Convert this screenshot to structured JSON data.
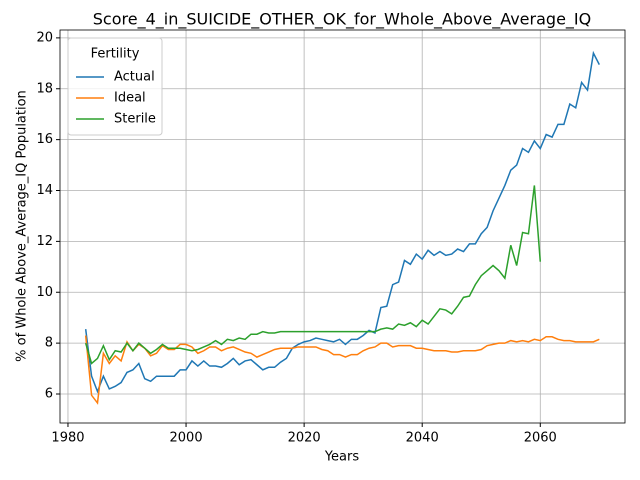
{
  "chart_data": {
    "type": "line",
    "title": "Score_4_in_SUICIDE_OTHER_OK_for_Whole_Above_Average_IQ",
    "x_label": "Years",
    "y_label": "% of Whole Above_Average_IQ Population",
    "legend_title": "Fertility",
    "legend_position": "upper left",
    "grid": true,
    "x": [
      1983,
      1984,
      1985,
      1986,
      1987,
      1988,
      1989,
      1990,
      1991,
      1992,
      1993,
      1994,
      1995,
      1996,
      1997,
      1998,
      1999,
      2000,
      2001,
      2002,
      2003,
      2004,
      2005,
      2006,
      2007,
      2008,
      2009,
      2010,
      2011,
      2012,
      2013,
      2014,
      2015,
      2016,
      2017,
      2018,
      2019,
      2020,
      2021,
      2022,
      2023,
      2024,
      2025,
      2026,
      2027,
      2028,
      2029,
      2030,
      2031,
      2032,
      2033,
      2034,
      2035,
      2036,
      2037,
      2038,
      2039,
      2040,
      2041,
      2042,
      2043,
      2044,
      2045,
      2046,
      2047,
      2048,
      2049,
      2050,
      2051,
      2052,
      2053,
      2054,
      2055,
      2056,
      2057,
      2058,
      2059,
      2060,
      2061,
      2062,
      2063,
      2064,
      2065,
      2066,
      2067,
      2068,
      2069,
      2070
    ],
    "series": [
      {
        "name": "Actual",
        "color": "#1f77b4",
        "values": [
          8.55,
          6.7,
          6.1,
          6.7,
          6.2,
          6.3,
          6.45,
          6.85,
          6.95,
          7.2,
          6.6,
          6.5,
          6.7,
          6.7,
          6.7,
          6.7,
          6.95,
          6.95,
          7.3,
          7.1,
          7.3,
          7.1,
          7.1,
          7.05,
          7.2,
          7.4,
          7.15,
          7.3,
          7.35,
          7.15,
          6.95,
          7.05,
          7.05,
          7.25,
          7.4,
          7.8,
          7.95,
          8.05,
          8.1,
          8.2,
          8.15,
          8.1,
          8.05,
          8.15,
          7.95,
          8.15,
          8.15,
          8.3,
          8.5,
          8.4,
          9.4,
          9.45,
          10.3,
          10.4,
          11.25,
          11.1,
          11.5,
          11.3,
          11.65,
          11.45,
          11.6,
          11.45,
          11.5,
          11.7,
          11.6,
          11.9,
          11.9,
          12.3,
          12.55,
          13.2,
          13.7,
          14.2,
          14.8,
          15.0,
          15.65,
          15.5,
          15.95,
          15.65,
          16.2,
          16.1,
          16.6,
          16.6,
          17.4,
          17.25,
          18.25,
          17.95,
          19.4,
          18.95
        ]
      },
      {
        "name": "Ideal",
        "color": "#ff7f0e",
        "values": [
          8.3,
          5.95,
          5.65,
          7.6,
          7.2,
          7.5,
          7.3,
          8.05,
          7.7,
          7.95,
          7.8,
          7.5,
          7.6,
          7.9,
          7.75,
          7.75,
          7.95,
          7.95,
          7.85,
          7.6,
          7.7,
          7.85,
          7.85,
          7.7,
          7.8,
          7.85,
          7.75,
          7.65,
          7.6,
          7.45,
          7.55,
          7.65,
          7.75,
          7.8,
          7.8,
          7.8,
          7.85,
          7.85,
          7.85,
          7.85,
          7.75,
          7.7,
          7.55,
          7.55,
          7.45,
          7.55,
          7.55,
          7.7,
          7.8,
          7.85,
          8.0,
          8.0,
          7.85,
          7.9,
          7.9,
          7.9,
          7.8,
          7.8,
          7.75,
          7.7,
          7.7,
          7.7,
          7.65,
          7.65,
          7.7,
          7.7,
          7.7,
          7.75,
          7.9,
          7.95,
          8.0,
          8.0,
          8.1,
          8.05,
          8.1,
          8.05,
          8.15,
          8.1,
          8.25,
          8.25,
          8.15,
          8.1,
          8.1,
          8.05,
          8.05,
          8.05,
          8.05,
          8.15
        ]
      },
      {
        "name": "Sterile",
        "color": "#2ca02c",
        "values": [
          8.0,
          7.2,
          7.4,
          7.9,
          7.35,
          7.7,
          7.65,
          8.0,
          7.7,
          8.0,
          7.8,
          7.6,
          7.75,
          7.95,
          7.8,
          7.8,
          7.8,
          7.75,
          7.7,
          7.75,
          7.85,
          7.95,
          8.1,
          7.95,
          8.15,
          8.1,
          8.2,
          8.15,
          8.35,
          8.35,
          8.45,
          8.4,
          8.4,
          8.45,
          8.45,
          8.45,
          8.45,
          8.45,
          8.45,
          8.45,
          8.45,
          8.45,
          8.45,
          8.45,
          8.45,
          8.45,
          8.45,
          8.45,
          8.45,
          8.45,
          8.55,
          8.6,
          8.55,
          8.75,
          8.7,
          8.8,
          8.65,
          8.9,
          8.75,
          9.05,
          9.35,
          9.3,
          9.15,
          9.45,
          9.8,
          9.85,
          10.3,
          10.65,
          10.85,
          11.05,
          10.85,
          10.55,
          11.85,
          11.05,
          12.35,
          12.3,
          14.2,
          11.2,
          null,
          null,
          null,
          null,
          null,
          null,
          null,
          null,
          null,
          null
        ]
      }
    ],
    "xlim": [
      1978.65,
      2074.35
    ],
    "ylim": [
      4.86,
      20.31
    ],
    "xticks": [
      1980,
      2000,
      2020,
      2040,
      2060
    ],
    "yticks": [
      6,
      8,
      10,
      12,
      14,
      16,
      18,
      20
    ]
  }
}
